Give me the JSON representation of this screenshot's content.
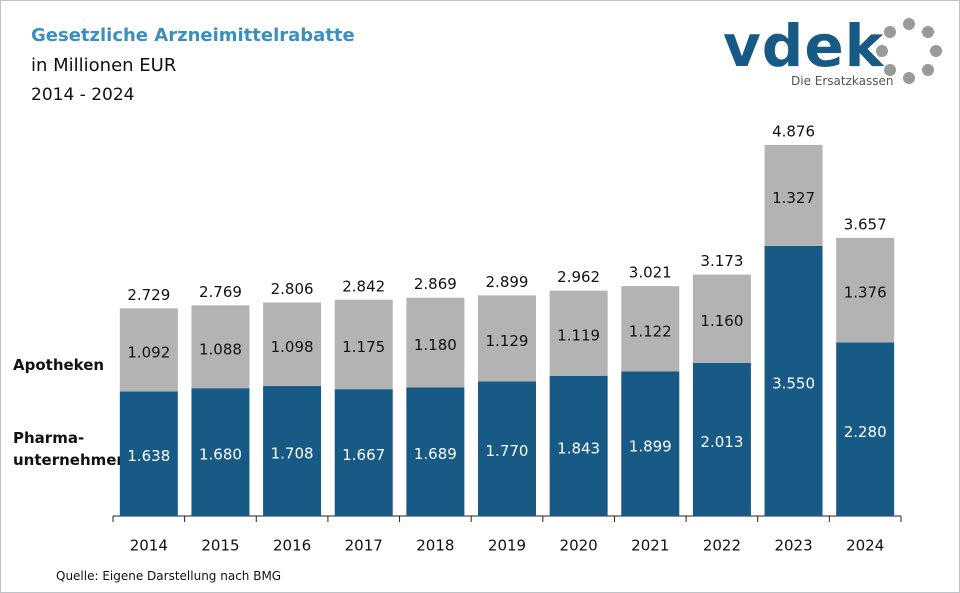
{
  "chart_data": {
    "type": "stacked_bar",
    "title": "Gesetzliche Arzneimittelrabatte",
    "subtitle": "in Millionen EUR",
    "period": "2014 - 2024",
    "source": "Quelle: Eigene Darstellung nach BMG",
    "logo": {
      "text": "vdek",
      "tagline": "Die Ersatzkassen"
    },
    "categories": [
      "2014",
      "2015",
      "2016",
      "2017",
      "2018",
      "2019",
      "2020",
      "2021",
      "2022",
      "2023",
      "2024"
    ],
    "series": [
      {
        "name": "Pharma-\nunternehmen",
        "color": "#175a85",
        "label_color": "#ffffff",
        "values": [
          1638,
          1680,
          1708,
          1667,
          1689,
          1770,
          1843,
          1899,
          2013,
          3550,
          2280
        ],
        "value_labels": [
          "1.638",
          "1.680",
          "1.708",
          "1.667",
          "1.689",
          "1.770",
          "1.843",
          "1.899",
          "2.013",
          "3.550",
          "2.280"
        ]
      },
      {
        "name": "Apotheken",
        "color": "#b3b3b3",
        "label_color": "#111111",
        "values": [
          1092,
          1088,
          1098,
          1175,
          1180,
          1129,
          1119,
          1122,
          1160,
          1327,
          1376
        ],
        "value_labels": [
          "1.092",
          "1.088",
          "1.098",
          "1.175",
          "1.180",
          "1.129",
          "1.119",
          "1.122",
          "1.160",
          "1.327",
          "1.376"
        ]
      }
    ],
    "totals": {
      "values": [
        2729,
        2769,
        2806,
        2842,
        2869,
        2899,
        2962,
        3021,
        3173,
        4876,
        3657
      ],
      "value_labels": [
        "2.729",
        "2.769",
        "2.806",
        "2.842",
        "2.869",
        "2.899",
        "2.962",
        "3.021",
        "3.173",
        "4.876",
        "3.657"
      ]
    }
  }
}
